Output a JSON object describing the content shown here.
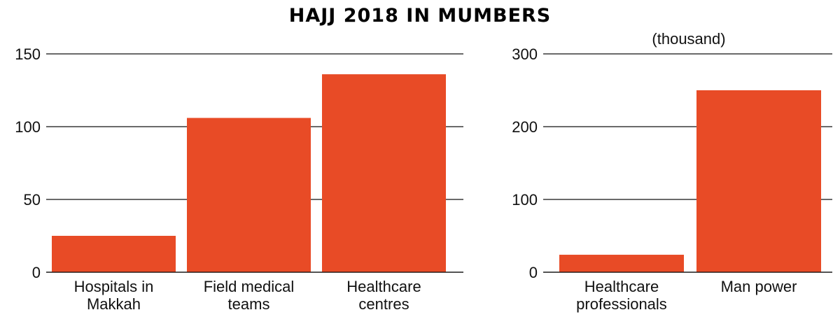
{
  "title": "HAJJ 2018 IN MUMBERS",
  "colors": {
    "bar": "#E84B26",
    "grid": "#111111",
    "text": "#111111"
  },
  "chart_data": [
    {
      "type": "bar",
      "title": "",
      "xlabel": "",
      "ylabel": "",
      "unit_note": "",
      "categories": [
        [
          "Hospitals in",
          "Makkah"
        ],
        [
          "Field medical",
          "teams"
        ],
        [
          "Healthcare",
          "centres"
        ]
      ],
      "values": [
        25,
        106,
        136
      ],
      "ylim": [
        0,
        150
      ],
      "yticks": [
        0,
        50,
        100,
        150
      ],
      "grid": true
    },
    {
      "type": "bar",
      "title": "",
      "xlabel": "",
      "ylabel": "",
      "unit_note": "(thousand)",
      "categories": [
        [
          "Healthcare",
          "professionals"
        ],
        [
          "Man power"
        ]
      ],
      "values": [
        24,
        250
      ],
      "ylim": [
        0,
        300
      ],
      "yticks": [
        0,
        100,
        200,
        300
      ],
      "grid": true
    }
  ]
}
